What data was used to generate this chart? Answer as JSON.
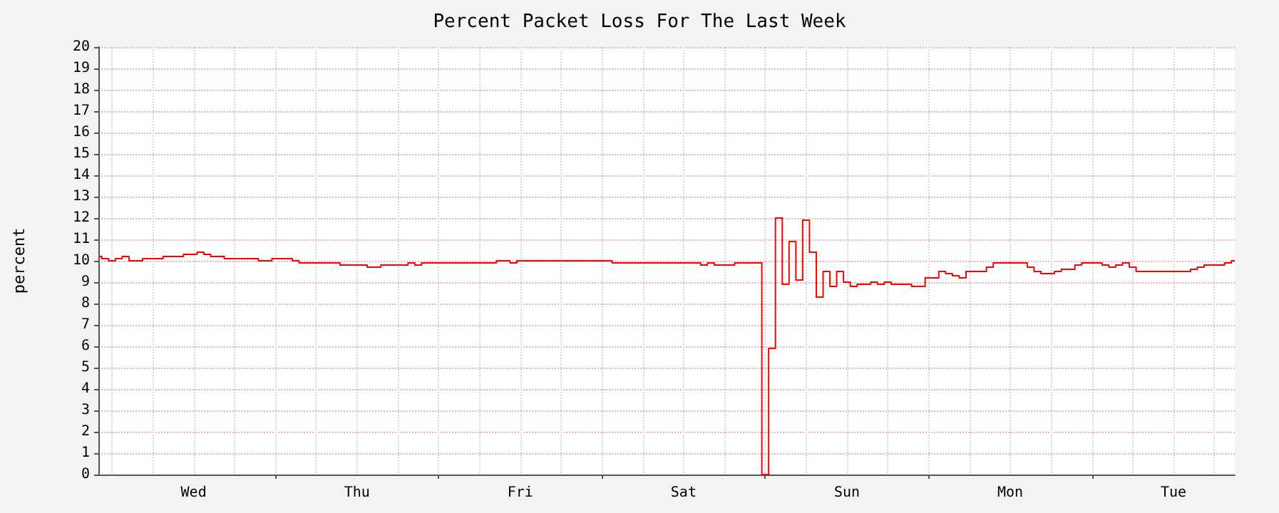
{
  "chart_data": {
    "type": "step",
    "title": "Percent Packet Loss For The Last Week",
    "ylabel": "percent",
    "categories": [
      null,
      null,
      null,
      null,
      null,
      null,
      null,
      null,
      null,
      null,
      null,
      null,
      null,
      null,
      "Wed",
      null,
      null,
      null,
      null,
      null,
      null,
      null,
      null,
      null,
      null,
      null,
      null,
      null,
      null,
      null,
      null,
      null,
      null,
      null,
      null,
      null,
      null,
      null,
      "Thu",
      null,
      null,
      null,
      null,
      null,
      null,
      null,
      null,
      null,
      null,
      null,
      null,
      null,
      null,
      null,
      null,
      null,
      null,
      null,
      null,
      null,
      null,
      null,
      "Fri",
      null,
      null,
      null,
      null,
      null,
      null,
      null,
      null,
      null,
      null,
      null,
      null,
      null,
      null,
      null,
      null,
      null,
      null,
      null,
      null,
      null,
      null,
      null,
      "Sat",
      null,
      null,
      null,
      null,
      null,
      null,
      null,
      null,
      null,
      null,
      null,
      null,
      null,
      null,
      null,
      null,
      null,
      null,
      null,
      null,
      null,
      null,
      null,
      "Sun",
      null,
      null,
      null,
      null,
      null,
      null,
      null,
      null,
      null,
      null,
      null,
      null,
      null,
      null,
      null,
      null,
      null,
      null,
      null,
      null,
      null,
      null,
      null,
      "Mon",
      null,
      null,
      null,
      null,
      null,
      null,
      null,
      null,
      null,
      null,
      null,
      null,
      null,
      null,
      null,
      null,
      null,
      null,
      null,
      null,
      null,
      null,
      null,
      "Tue",
      null,
      null,
      null,
      null,
      null,
      null,
      null,
      null,
      null
    ],
    "series": [
      {
        "color": "#ff0000",
        "values": [
          10.2,
          10.1,
          10.0,
          10.1,
          10.2,
          10.0,
          10.0,
          10.1,
          10.1,
          10.1,
          10.2,
          10.2,
          10.2,
          10.3,
          10.3,
          10.4,
          10.3,
          10.2,
          10.2,
          10.1,
          10.1,
          10.1,
          10.1,
          10.1,
          10.0,
          10.0,
          10.1,
          10.1,
          10.1,
          10.0,
          9.9,
          9.9,
          9.9,
          9.9,
          9.9,
          9.9,
          9.8,
          9.8,
          9.8,
          9.8,
          9.7,
          9.7,
          9.8,
          9.8,
          9.8,
          9.8,
          9.9,
          9.8,
          9.9,
          9.9,
          9.9,
          9.9,
          9.9,
          9.9,
          9.9,
          9.9,
          9.9,
          9.9,
          9.9,
          10.0,
          10.0,
          9.9,
          10.0,
          10.0,
          10.0,
          10.0,
          10.0,
          10.0,
          10.0,
          10.0,
          10.0,
          10.0,
          10.0,
          10.0,
          10.0,
          10.0,
          9.9,
          9.9,
          9.9,
          9.9,
          9.9,
          9.9,
          9.9,
          9.9,
          9.9,
          9.9,
          9.9,
          9.9,
          9.9,
          9.8,
          9.9,
          9.8,
          9.8,
          9.8,
          9.9,
          9.9,
          9.9,
          9.9,
          0,
          5.9,
          12.0,
          8.9,
          10.9,
          9.1,
          11.9,
          10.4,
          8.3,
          9.5,
          8.8,
          9.5,
          9.0,
          8.8,
          8.9,
          8.9,
          9.0,
          8.9,
          9.0,
          8.9,
          8.9,
          8.9,
          8.8,
          8.8,
          9.2,
          9.2,
          9.5,
          9.4,
          9.3,
          9.2,
          9.5,
          9.5,
          9.5,
          9.7,
          9.9,
          9.9,
          9.9,
          9.9,
          9.9,
          9.7,
          9.5,
          9.4,
          9.4,
          9.5,
          9.6,
          9.6,
          9.8,
          9.9,
          9.9,
          9.9,
          9.8,
          9.7,
          9.8,
          9.9,
          9.7,
          9.5,
          9.5,
          9.5,
          9.5,
          9.5,
          9.5,
          9.5,
          9.5,
          9.6,
          9.7,
          9.8,
          9.8,
          9.8,
          9.9,
          10.0
        ]
      }
    ],
    "ylim": [
      0,
      20
    ],
    "yticks": [
      0,
      1,
      2,
      3,
      4,
      5,
      6,
      7,
      8,
      9,
      10,
      11,
      12,
      13,
      14,
      15,
      16,
      17,
      18,
      19,
      20
    ],
    "grid": true,
    "marker": "none",
    "line_style": "solid"
  }
}
